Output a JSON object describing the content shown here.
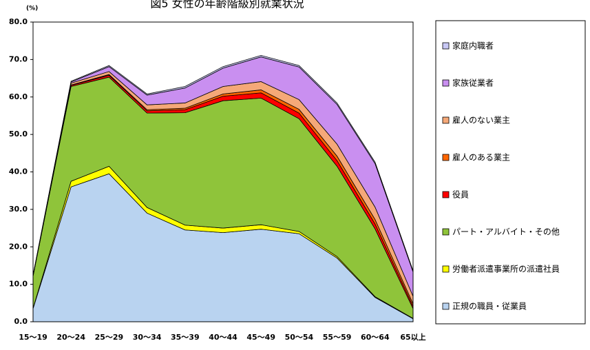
{
  "chart_data": {
    "type": "stacked_area",
    "title": "図5 女性の年齢階級別就業状況",
    "y_unit": "(%)",
    "categories": [
      "15～19",
      "20～24",
      "25～29",
      "30～34",
      "35～39",
      "40～44",
      "45～49",
      "50～54",
      "55～59",
      "60～64",
      "65以上"
    ],
    "ylim": [
      0,
      80
    ],
    "yticks": [
      {
        "value": 0,
        "label": "0.0"
      },
      {
        "value": 10,
        "label": "10.0"
      },
      {
        "value": 20,
        "label": "20.0"
      },
      {
        "value": 30,
        "label": "30.0"
      },
      {
        "value": 40,
        "label": "40.0"
      },
      {
        "value": 50,
        "label": "50.0"
      },
      {
        "value": 60,
        "label": "60.0"
      },
      {
        "value": 70,
        "label": "70.0"
      },
      {
        "value": 80,
        "label": "80.0"
      }
    ],
    "series": [
      {
        "name": "正規の職員・従業員",
        "color": "#b9d3f0",
        "values": [
          3.5,
          36.0,
          39.5,
          29.0,
          24.5,
          23.8,
          24.7,
          23.5,
          17.0,
          6.5,
          0.8
        ]
      },
      {
        "name": "労働者派遣事業所の派遣社員",
        "color": "#ffff00",
        "values": [
          0.1,
          1.5,
          2.0,
          1.5,
          1.3,
          1.2,
          1.2,
          0.6,
          0.4,
          0.2,
          0.1
        ]
      },
      {
        "name": "パート・アルバイト・その他",
        "color": "#8fc43a",
        "values": [
          8.6,
          25.3,
          23.8,
          25.2,
          30.0,
          34.0,
          33.8,
          30.1,
          24.1,
          18.1,
          2.6
        ]
      },
      {
        "name": "役員",
        "color": "#ff0000",
        "values": [
          0,
          0.3,
          0.5,
          0.6,
          0.8,
          1.2,
          1.4,
          1.5,
          1.5,
          1.3,
          0.6
        ]
      },
      {
        "name": "雇人のある業主",
        "color": "#ff6600",
        "values": [
          0,
          0.1,
          0.2,
          0.3,
          0.4,
          0.6,
          0.8,
          1.0,
          1.2,
          1.2,
          0.7
        ]
      },
      {
        "name": "雇人のない業主",
        "color": "#f5a878",
        "values": [
          0.1,
          0.5,
          0.8,
          1.3,
          1.4,
          2.0,
          2.2,
          2.6,
          3.2,
          3.3,
          2.0
        ]
      },
      {
        "name": "家族従業者",
        "color": "#c98ff0",
        "values": [
          0.1,
          0.3,
          1.3,
          2.6,
          4.0,
          4.9,
          6.6,
          8.7,
          10.6,
          11.6,
          6.5
        ]
      },
      {
        "name": "家庭内職者",
        "color": "#c8c8f5",
        "values": [
          0.1,
          0.2,
          0.3,
          0.3,
          0.4,
          0.4,
          0.4,
          0.4,
          0.4,
          0.4,
          0.3
        ]
      }
    ]
  }
}
